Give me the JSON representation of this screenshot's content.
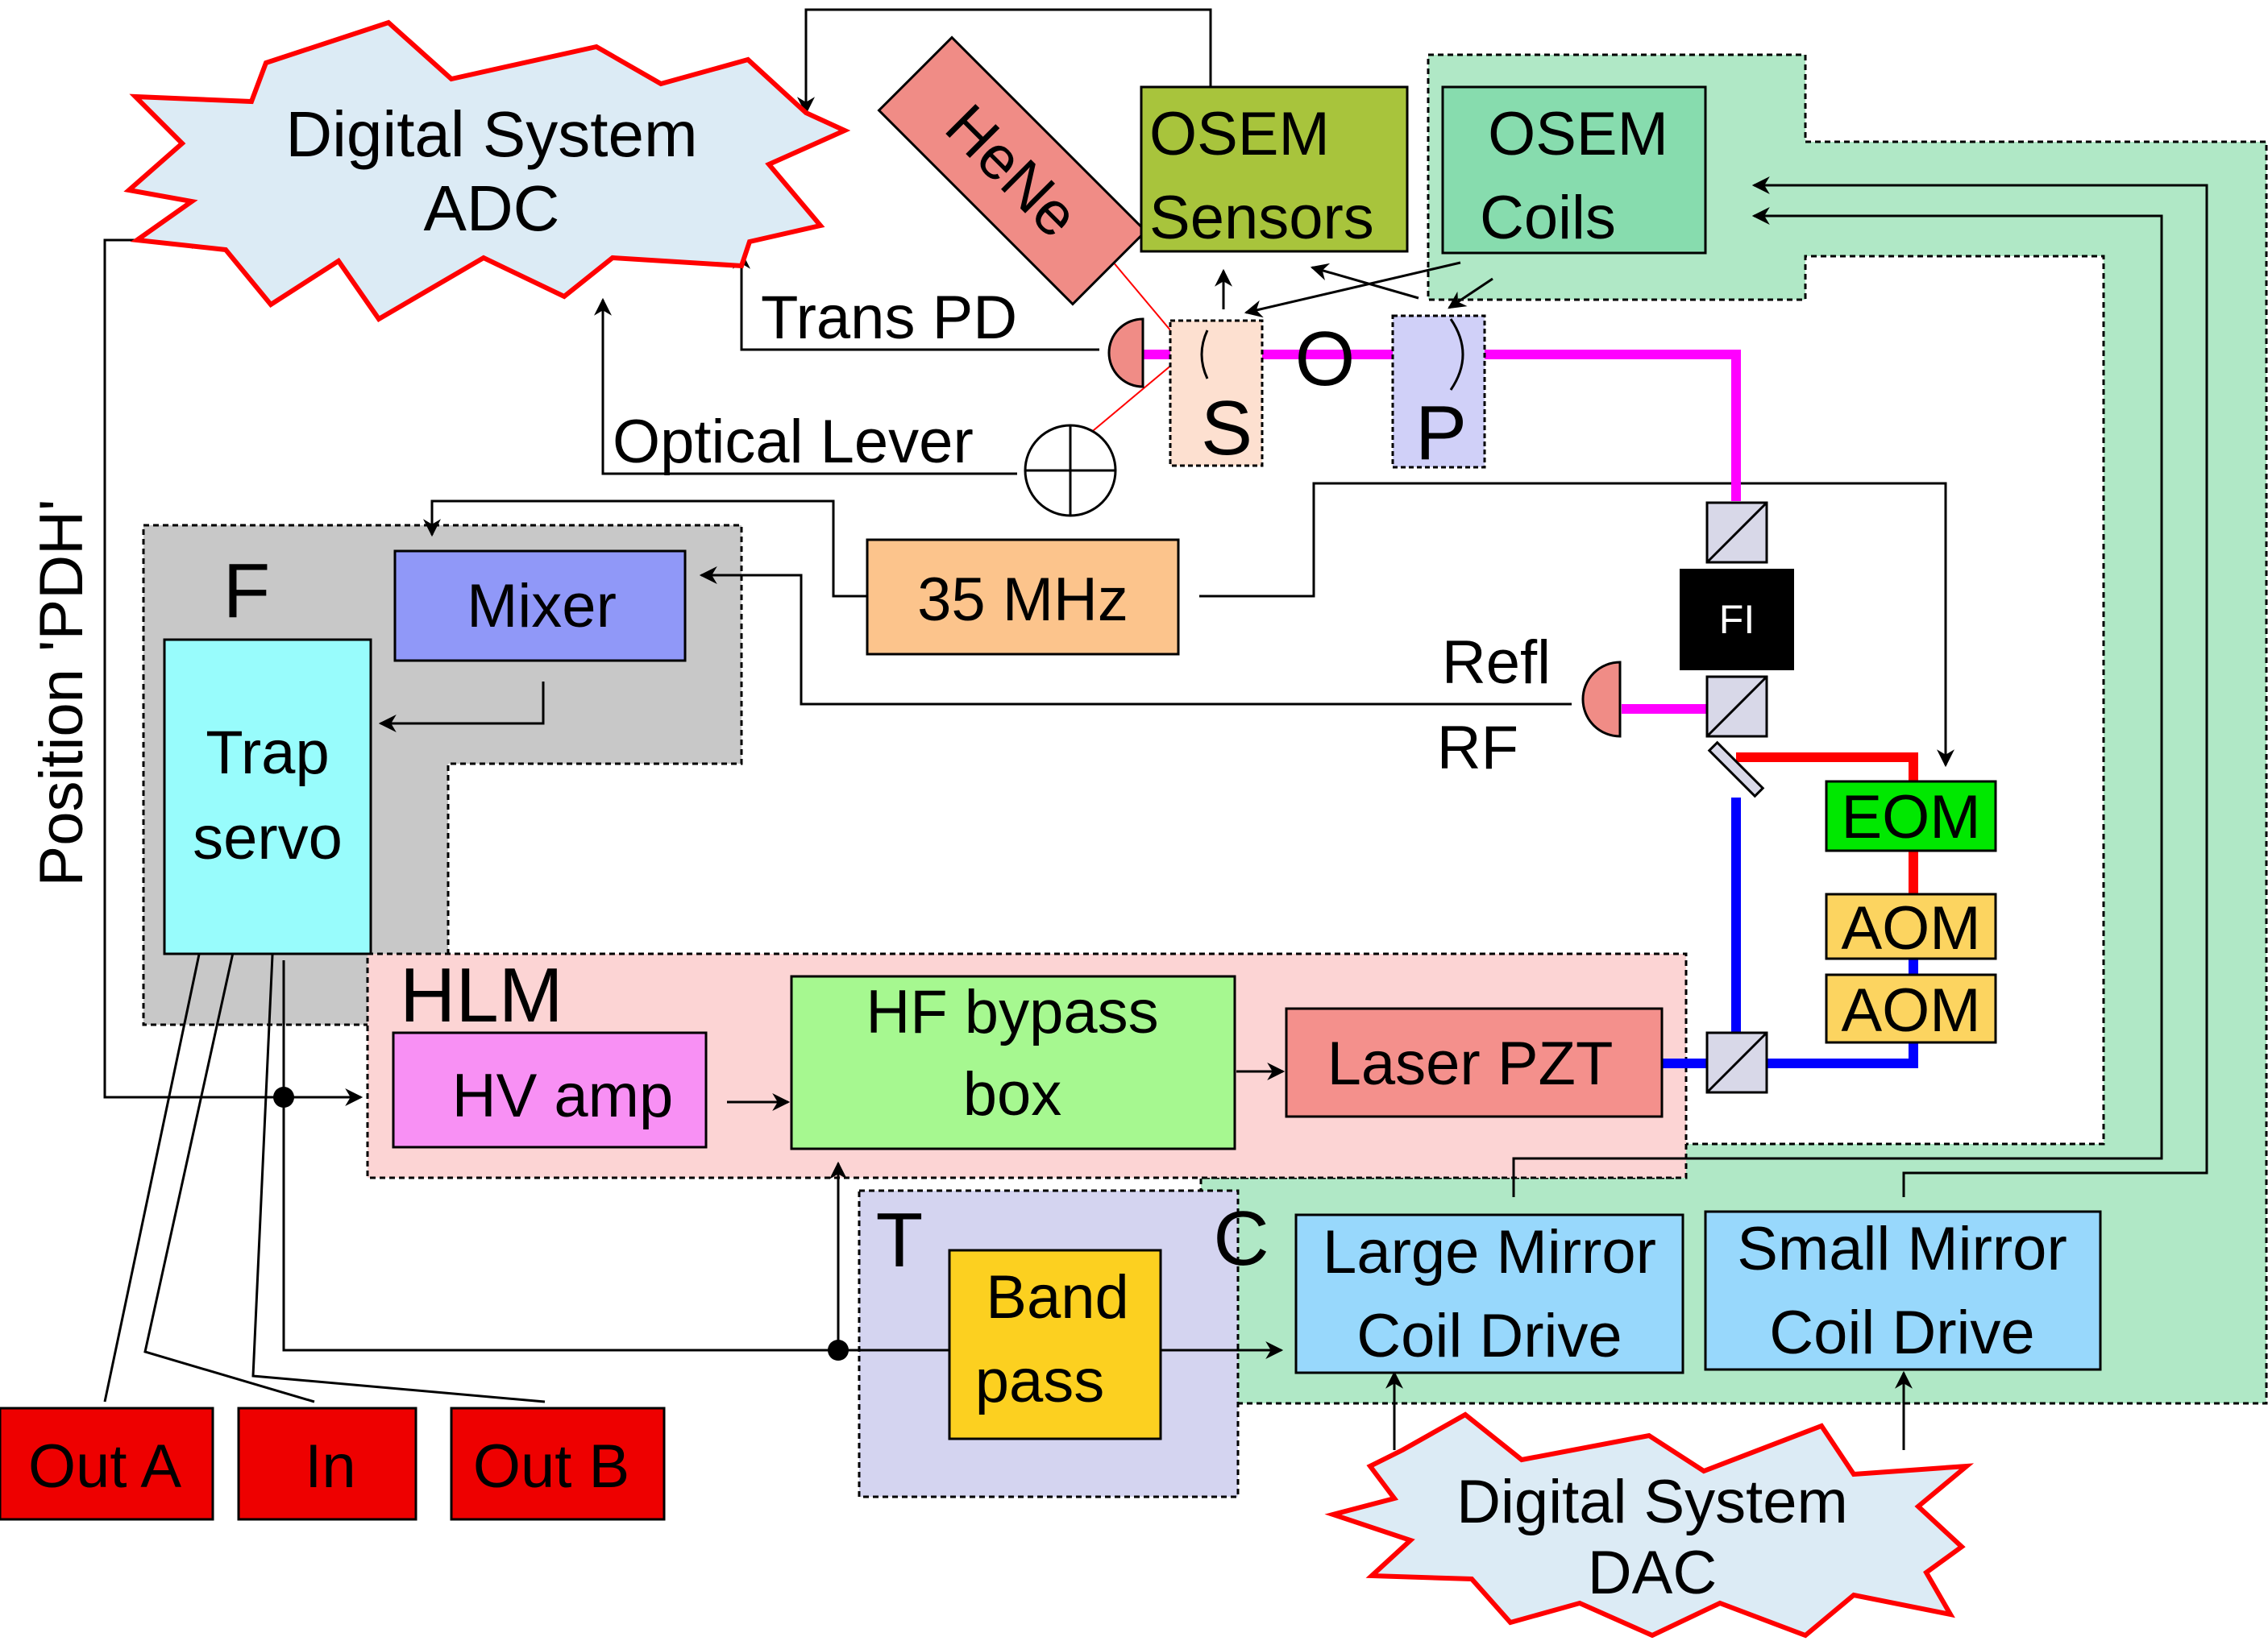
{
  "diagram": {
    "digital_adc": {
      "line1": "Digital System",
      "line2": "ADC"
    },
    "digital_dac": {
      "line1": "Digital System",
      "line2": "DAC"
    },
    "hene": "HeNe",
    "osem_sensors": {
      "line1": "OSEM",
      "line2": "Sensors"
    },
    "osem_coils": {
      "line1": "OSEM",
      "line2": "Coils"
    },
    "trans_pd": "Trans PD",
    "optical_lever": "Optical Lever",
    "mirror_s": "S",
    "mirror_o": "O",
    "mirror_p": "P",
    "position_pdh": "Position 'PDH'",
    "group_f": "F",
    "mixer": "Mixer",
    "trap_servo": {
      "line1": "Trap",
      "line2": "servo"
    },
    "osc_35mhz": "35 MHz",
    "fi": "FI",
    "refl_rf": {
      "line1": "Refl",
      "line2": "RF"
    },
    "eom": "EOM",
    "aom_top": "AOM",
    "aom_bottom": "AOM",
    "group_hlm": "HLM",
    "hv_amp": "HV amp",
    "hf_bypass": {
      "line1": "HF bypass",
      "line2": "box"
    },
    "laser_pzt": "Laser PZT",
    "group_t": "T",
    "band_pass": {
      "line1": "Band",
      "line2": "pass"
    },
    "group_c": "C",
    "large_mirror": {
      "line1": "Large Mirror",
      "line2": "Coil Drive"
    },
    "small_mirror": {
      "line1": "Small Mirror",
      "line2": "Coil Drive"
    },
    "out_a": "Out A",
    "in": "In",
    "out_b": "Out B"
  },
  "colors": {
    "cloud_fill": "#dcebf5",
    "cloud_stroke": "#ff0000",
    "hene": "#f08c86",
    "osem_sensors": "#a8c43c",
    "osem_coils": "#87dcae",
    "c_group": "#b0e8c6",
    "f_group": "#c8c8c8",
    "mixer": "#9098f8",
    "trap_servo": "#98fcfc",
    "osc": "#fcc48c",
    "hlm_group": "#fcd4d4",
    "hv_amp": "#f890f4",
    "hf_bypass": "#a6f890",
    "laser_pzt": "#f4908c",
    "t_group": "#d4d4f0",
    "band_pass": "#fcd020",
    "coil_drive": "#98d8fc",
    "eom": "#00e800",
    "aom": "#fcd460",
    "io_box": "#ee0000",
    "beam_magenta": "#ff00ff",
    "beam_red": "#ff0000",
    "beam_blue": "#0000ff",
    "mirror_s": "#fde0d0",
    "mirror_p": "#d0d0f8"
  }
}
